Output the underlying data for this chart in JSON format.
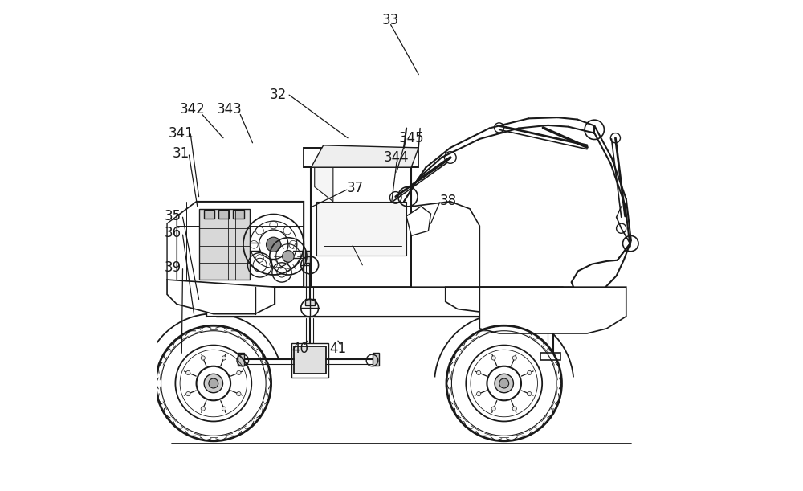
{
  "bg_color": "#ffffff",
  "line_color": "#1a1a1a",
  "lw": 1.0,
  "label_fontsize": 12,
  "figsize": [
    10.0,
    6.11
  ],
  "dpi": 100,
  "labels": {
    "33": [
      0.478,
      0.038,
      0.535,
      0.135
    ],
    "32": [
      0.248,
      0.195,
      0.335,
      0.255
    ],
    "342": [
      0.075,
      0.235,
      0.135,
      0.285
    ],
    "343": [
      0.15,
      0.228,
      0.185,
      0.278
    ],
    "341": [
      0.052,
      0.285,
      0.085,
      0.33
    ],
    "31": [
      0.052,
      0.325,
      0.082,
      0.375
    ],
    "345": [
      0.52,
      0.295,
      0.49,
      0.34
    ],
    "344": [
      0.49,
      0.34,
      0.465,
      0.385
    ],
    "37": [
      0.408,
      0.395,
      0.35,
      0.44
    ],
    "38": [
      0.592,
      0.388,
      0.64,
      0.435
    ],
    "35": [
      0.032,
      0.458,
      0.105,
      0.505
    ],
    "36": [
      0.032,
      0.492,
      0.075,
      0.535
    ],
    "39": [
      0.032,
      0.558,
      0.05,
      0.59
    ],
    "40": [
      0.295,
      0.718,
      0.29,
      0.68
    ],
    "41": [
      0.372,
      0.718,
      0.375,
      0.68
    ]
  }
}
